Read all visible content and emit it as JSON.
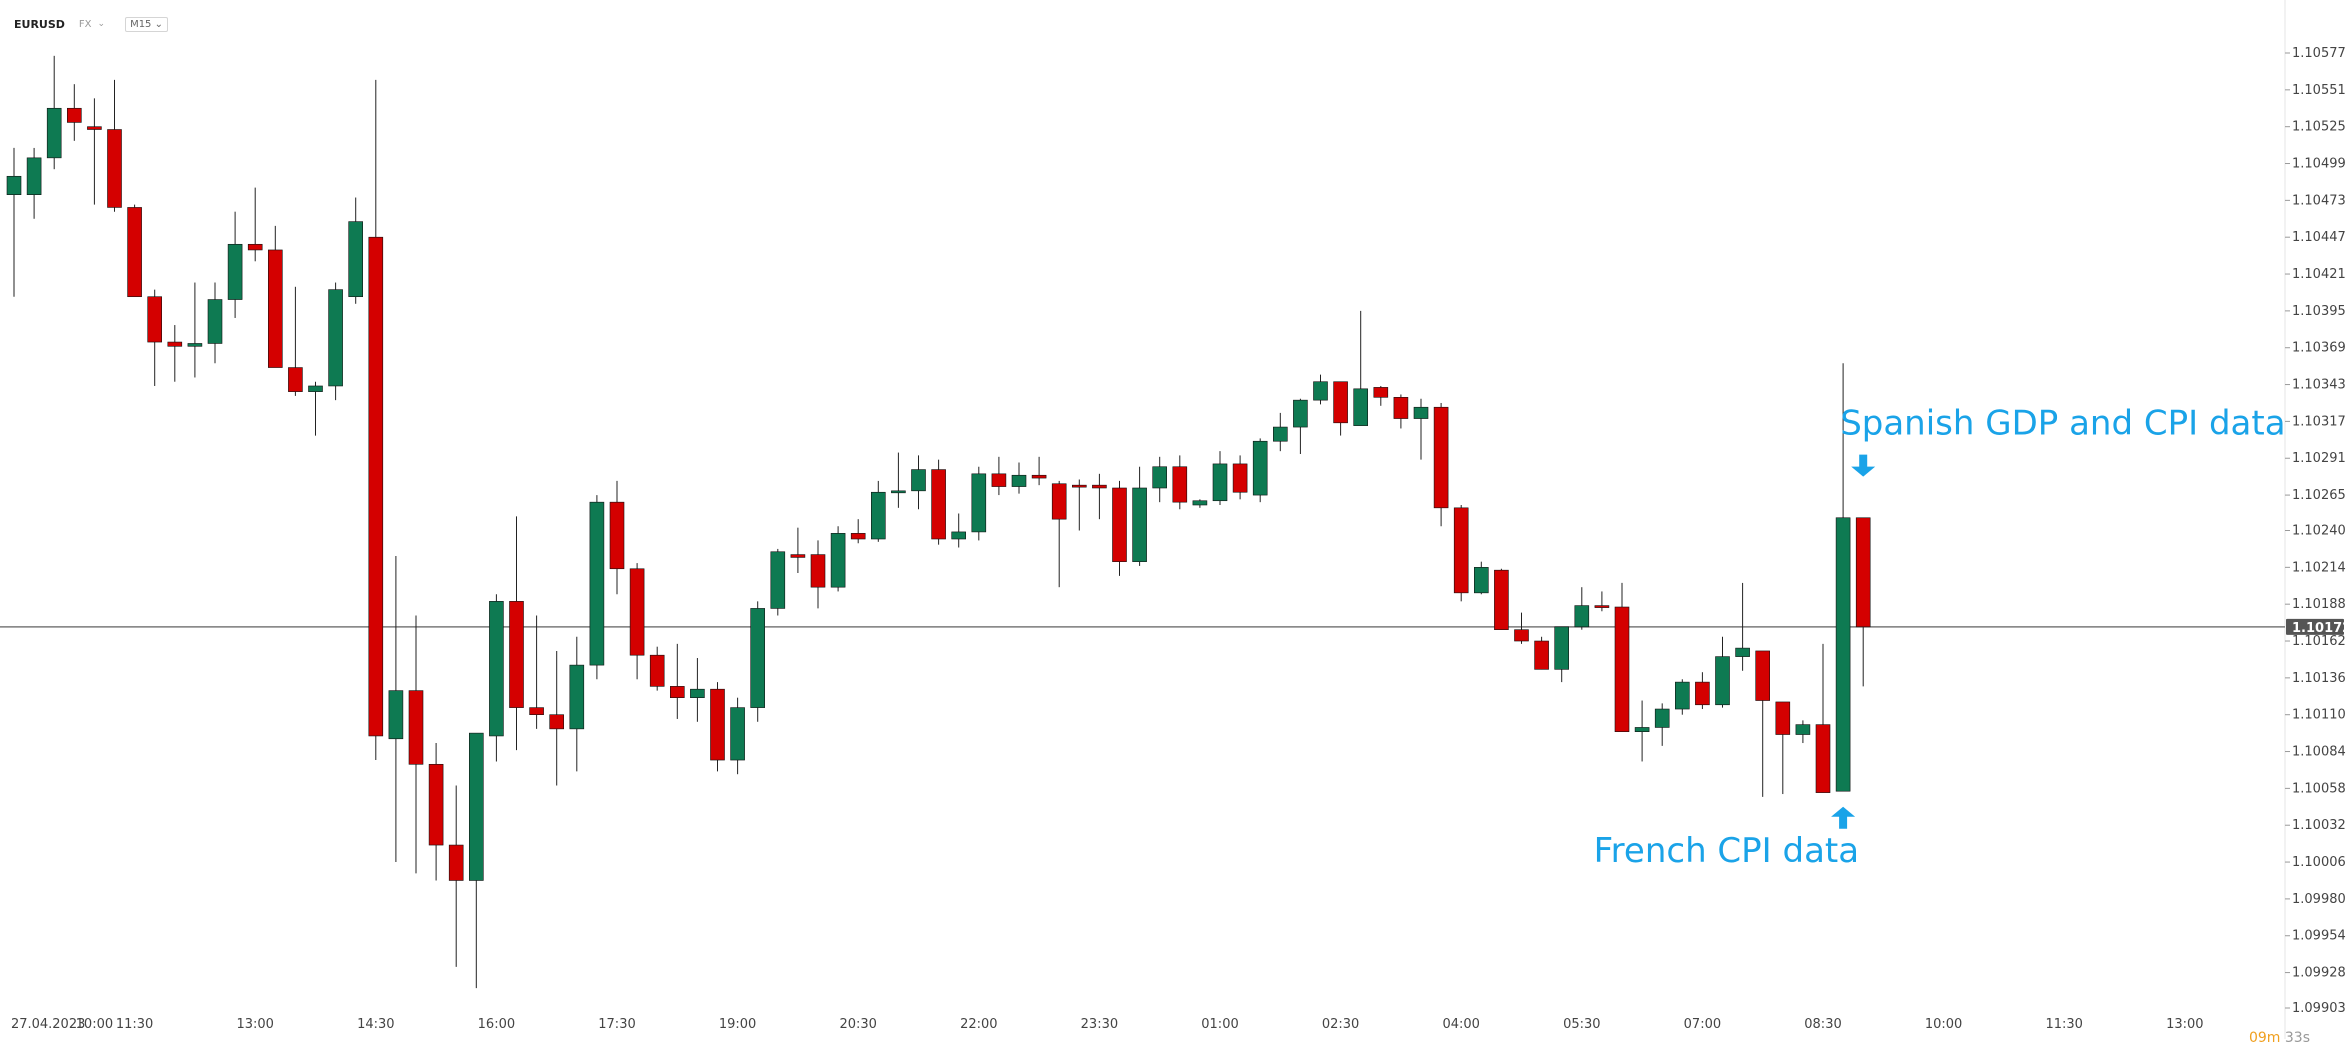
{
  "header": {
    "symbol": "EURUSD",
    "market": "FX",
    "timeframe": "M15"
  },
  "countdown": {
    "minutes": "09m",
    "seconds": "33s"
  },
  "colors": {
    "bull": "#0e7a52",
    "bear": "#d40000",
    "wick": "#222222",
    "annotation": "#1aa3e8",
    "price_line": "#7a7a7a",
    "price_label_bg": "#555555"
  },
  "chart_data": {
    "type": "candlestick",
    "symbol": "EURUSD",
    "timeframe": "M15",
    "ylim": [
      1.0989,
      1.106
    ],
    "y_ticks": [
      "1.10577",
      "1.10551",
      "1.10525",
      "1.10499",
      "1.10473",
      "1.10447",
      "1.10421",
      "1.10395",
      "1.10369",
      "1.10343",
      "1.10317",
      "1.10291",
      "1.10265",
      "1.10240",
      "1.10214",
      "1.10188",
      "1.10162",
      "1.10136",
      "1.10110",
      "1.10084",
      "1.10058",
      "1.10032",
      "1.10006",
      "1.09980",
      "1.09954",
      "1.09928",
      "1.09903"
    ],
    "current_price": "1.10172",
    "x_labels": [
      {
        "i": 1.7,
        "label": "27.04.2023"
      },
      {
        "i": 4,
        "label": "10:00"
      },
      {
        "i": 6,
        "label": "11:30"
      },
      {
        "i": 12,
        "label": "13:00"
      },
      {
        "i": 18,
        "label": "14:30"
      },
      {
        "i": 24,
        "label": "16:00"
      },
      {
        "i": 30,
        "label": "17:30"
      },
      {
        "i": 36,
        "label": "19:00"
      },
      {
        "i": 42,
        "label": "20:30"
      },
      {
        "i": 48,
        "label": "22:00"
      },
      {
        "i": 54,
        "label": "23:30"
      },
      {
        "i": 60,
        "label": "01:00"
      },
      {
        "i": 66,
        "label": "02:30"
      },
      {
        "i": 72,
        "label": "04:00"
      },
      {
        "i": 78,
        "label": "05:30"
      },
      {
        "i": 84,
        "label": "07:00"
      },
      {
        "i": 90,
        "label": "08:30"
      },
      {
        "i": 96,
        "label": "10:00"
      },
      {
        "i": 102,
        "label": "11:30"
      },
      {
        "i": 108,
        "label": "13:00"
      }
    ],
    "candles": [
      {
        "o": 1.10477,
        "h": 1.1051,
        "l": 1.10405,
        "c": 1.1049
      },
      {
        "o": 1.10477,
        "h": 1.1051,
        "l": 1.1046,
        "c": 1.10503
      },
      {
        "o": 1.10503,
        "h": 1.10575,
        "l": 1.10495,
        "c": 1.10538
      },
      {
        "o": 1.10538,
        "h": 1.10555,
        "l": 1.10515,
        "c": 1.10528
      },
      {
        "o": 1.10525,
        "h": 1.10545,
        "l": 1.1047,
        "c": 1.10523
      },
      {
        "o": 1.10523,
        "h": 1.10558,
        "l": 1.10465,
        "c": 1.10468
      },
      {
        "o": 1.10468,
        "h": 1.1047,
        "l": 1.10405,
        "c": 1.10405
      },
      {
        "o": 1.10405,
        "h": 1.1041,
        "l": 1.10342,
        "c": 1.10373
      },
      {
        "o": 1.10373,
        "h": 1.10385,
        "l": 1.10345,
        "c": 1.1037
      },
      {
        "o": 1.1037,
        "h": 1.10415,
        "l": 1.10348,
        "c": 1.10372
      },
      {
        "o": 1.10372,
        "h": 1.10415,
        "l": 1.10358,
        "c": 1.10403
      },
      {
        "o": 1.10403,
        "h": 1.10465,
        "l": 1.1039,
        "c": 1.10442
      },
      {
        "o": 1.10442,
        "h": 1.10482,
        "l": 1.1043,
        "c": 1.10438
      },
      {
        "o": 1.10438,
        "h": 1.10455,
        "l": 1.10355,
        "c": 1.10355
      },
      {
        "o": 1.10355,
        "h": 1.10412,
        "l": 1.10335,
        "c": 1.10338
      },
      {
        "o": 1.10338,
        "h": 1.10345,
        "l": 1.10307,
        "c": 1.10342
      },
      {
        "o": 1.10342,
        "h": 1.10415,
        "l": 1.10332,
        "c": 1.1041
      },
      {
        "o": 1.10405,
        "h": 1.10475,
        "l": 1.104,
        "c": 1.10458
      },
      {
        "o": 1.10447,
        "h": 1.10558,
        "l": 1.10078,
        "c": 1.10095
      },
      {
        "o": 1.10093,
        "h": 1.10222,
        "l": 1.10006,
        "c": 1.10127
      },
      {
        "o": 1.10127,
        "h": 1.1018,
        "l": 1.09998,
        "c": 1.10075
      },
      {
        "o": 1.10075,
        "h": 1.1009,
        "l": 1.09993,
        "c": 1.10018
      },
      {
        "o": 1.10018,
        "h": 1.1006,
        "l": 1.09932,
        "c": 1.09993
      },
      {
        "o": 1.09993,
        "h": 1.10095,
        "l": 1.09917,
        "c": 1.10097
      },
      {
        "o": 1.10095,
        "h": 1.10195,
        "l": 1.10077,
        "c": 1.1019
      },
      {
        "o": 1.1019,
        "h": 1.1025,
        "l": 1.10085,
        "c": 1.10115
      },
      {
        "o": 1.10115,
        "h": 1.1018,
        "l": 1.101,
        "c": 1.1011
      },
      {
        "o": 1.1011,
        "h": 1.10155,
        "l": 1.1006,
        "c": 1.101
      },
      {
        "o": 1.101,
        "h": 1.10165,
        "l": 1.1007,
        "c": 1.10145
      },
      {
        "o": 1.10145,
        "h": 1.10265,
        "l": 1.10135,
        "c": 1.1026
      },
      {
        "o": 1.1026,
        "h": 1.10275,
        "l": 1.10195,
        "c": 1.10213
      },
      {
        "o": 1.10213,
        "h": 1.10217,
        "l": 1.10135,
        "c": 1.10152
      },
      {
        "o": 1.10152,
        "h": 1.10158,
        "l": 1.10127,
        "c": 1.1013
      },
      {
        "o": 1.1013,
        "h": 1.1016,
        "l": 1.10107,
        "c": 1.10122
      },
      {
        "o": 1.10122,
        "h": 1.1015,
        "l": 1.10105,
        "c": 1.10128
      },
      {
        "o": 1.10128,
        "h": 1.10133,
        "l": 1.1007,
        "c": 1.10078
      },
      {
        "o": 1.10078,
        "h": 1.10122,
        "l": 1.10068,
        "c": 1.10115
      },
      {
        "o": 1.10115,
        "h": 1.1019,
        "l": 1.10105,
        "c": 1.10185
      },
      {
        "o": 1.10185,
        "h": 1.10227,
        "l": 1.1018,
        "c": 1.10225
      },
      {
        "o": 1.10223,
        "h": 1.10242,
        "l": 1.1021,
        "c": 1.10221
      },
      {
        "o": 1.10223,
        "h": 1.10233,
        "l": 1.10185,
        "c": 1.102
      },
      {
        "o": 1.102,
        "h": 1.10243,
        "l": 1.10197,
        "c": 1.10238
      },
      {
        "o": 1.10238,
        "h": 1.10248,
        "l": 1.10231,
        "c": 1.10234
      },
      {
        "o": 1.10234,
        "h": 1.10275,
        "l": 1.10232,
        "c": 1.10267
      },
      {
        "o": 1.10267,
        "h": 1.10295,
        "l": 1.10256,
        "c": 1.10268
      },
      {
        "o": 1.10268,
        "h": 1.10293,
        "l": 1.10255,
        "c": 1.10283
      },
      {
        "o": 1.10283,
        "h": 1.1029,
        "l": 1.1023,
        "c": 1.10234
      },
      {
        "o": 1.10234,
        "h": 1.10252,
        "l": 1.10228,
        "c": 1.10239
      },
      {
        "o": 1.10239,
        "h": 1.10285,
        "l": 1.10233,
        "c": 1.1028
      },
      {
        "o": 1.1028,
        "h": 1.10292,
        "l": 1.10265,
        "c": 1.10271
      },
      {
        "o": 1.10271,
        "h": 1.10288,
        "l": 1.10266,
        "c": 1.10279
      },
      {
        "o": 1.10279,
        "h": 1.10292,
        "l": 1.10272,
        "c": 1.10277
      },
      {
        "o": 1.10273,
        "h": 1.10275,
        "l": 1.102,
        "c": 1.10248
      },
      {
        "o": 1.10272,
        "h": 1.10276,
        "l": 1.1024,
        "c": 1.10271
      },
      {
        "o": 1.10272,
        "h": 1.1028,
        "l": 1.10248,
        "c": 1.1027
      },
      {
        "o": 1.1027,
        "h": 1.10275,
        "l": 1.10208,
        "c": 1.10218
      },
      {
        "o": 1.10218,
        "h": 1.10285,
        "l": 1.10215,
        "c": 1.1027
      },
      {
        "o": 1.1027,
        "h": 1.10292,
        "l": 1.1026,
        "c": 1.10285
      },
      {
        "o": 1.10285,
        "h": 1.10293,
        "l": 1.10255,
        "c": 1.1026
      },
      {
        "o": 1.10258,
        "h": 1.10262,
        "l": 1.10256,
        "c": 1.10261
      },
      {
        "o": 1.10261,
        "h": 1.10296,
        "l": 1.10258,
        "c": 1.10287
      },
      {
        "o": 1.10287,
        "h": 1.10293,
        "l": 1.10262,
        "c": 1.10267
      },
      {
        "o": 1.10265,
        "h": 1.10305,
        "l": 1.1026,
        "c": 1.10303
      },
      {
        "o": 1.10303,
        "h": 1.10323,
        "l": 1.10296,
        "c": 1.10313
      },
      {
        "o": 1.10313,
        "h": 1.10333,
        "l": 1.10294,
        "c": 1.10332
      },
      {
        "o": 1.10332,
        "h": 1.1035,
        "l": 1.10329,
        "c": 1.10345
      },
      {
        "o": 1.10345,
        "h": 1.10345,
        "l": 1.10307,
        "c": 1.10316
      },
      {
        "o": 1.10314,
        "h": 1.10395,
        "l": 1.10314,
        "c": 1.1034
      },
      {
        "o": 1.10341,
        "h": 1.10342,
        "l": 1.10328,
        "c": 1.10334
      },
      {
        "o": 1.10334,
        "h": 1.10336,
        "l": 1.10312,
        "c": 1.10319
      },
      {
        "o": 1.10319,
        "h": 1.10333,
        "l": 1.1029,
        "c": 1.10327
      },
      {
        "o": 1.10327,
        "h": 1.1033,
        "l": 1.10243,
        "c": 1.10256
      },
      {
        "o": 1.10256,
        "h": 1.10258,
        "l": 1.1019,
        "c": 1.10196
      },
      {
        "o": 1.10196,
        "h": 1.10218,
        "l": 1.10195,
        "c": 1.10214
      },
      {
        "o": 1.10212,
        "h": 1.10213,
        "l": 1.1017,
        "c": 1.1017
      },
      {
        "o": 1.1017,
        "h": 1.10182,
        "l": 1.1016,
        "c": 1.10162
      },
      {
        "o": 1.10162,
        "h": 1.10165,
        "l": 1.10142,
        "c": 1.10142
      },
      {
        "o": 1.10142,
        "h": 1.10172,
        "l": 1.10133,
        "c": 1.10172
      },
      {
        "o": 1.10172,
        "h": 1.102,
        "l": 1.1017,
        "c": 1.10187
      },
      {
        "o": 1.10187,
        "h": 1.10197,
        "l": 1.10183,
        "c": 1.10186
      },
      {
        "o": 1.10186,
        "h": 1.10203,
        "l": 1.10098,
        "c": 1.10098
      },
      {
        "o": 1.10098,
        "h": 1.1012,
        "l": 1.10077,
        "c": 1.10101
      },
      {
        "o": 1.10101,
        "h": 1.10118,
        "l": 1.10088,
        "c": 1.10114
      },
      {
        "o": 1.10114,
        "h": 1.10135,
        "l": 1.1011,
        "c": 1.10133
      },
      {
        "o": 1.10133,
        "h": 1.1014,
        "l": 1.10114,
        "c": 1.10117
      },
      {
        "o": 1.10117,
        "h": 1.10165,
        "l": 1.10115,
        "c": 1.10151
      },
      {
        "o": 1.10151,
        "h": 1.10203,
        "l": 1.10141,
        "c": 1.10157
      },
      {
        "o": 1.10155,
        "h": 1.10155,
        "l": 1.10052,
        "c": 1.1012
      },
      {
        "o": 1.10119,
        "h": 1.10119,
        "l": 1.10054,
        "c": 1.10096
      },
      {
        "o": 1.10096,
        "h": 1.10106,
        "l": 1.1009,
        "c": 1.10103
      },
      {
        "o": 1.10103,
        "h": 1.1016,
        "l": 1.10055,
        "c": 1.10055
      },
      {
        "o": 1.10056,
        "h": 1.10358,
        "l": 1.10056,
        "c": 1.10249
      },
      {
        "o": 1.10249,
        "h": 1.10249,
        "l": 1.1013,
        "c": 1.10172
      }
    ],
    "annotations": [
      {
        "text": "Spanish GDP and CPI data",
        "candle": 92,
        "price": 1.10278,
        "direction": "down"
      },
      {
        "text": "French CPI data",
        "candle": 91,
        "price": 1.10045,
        "direction": "up"
      }
    ]
  }
}
